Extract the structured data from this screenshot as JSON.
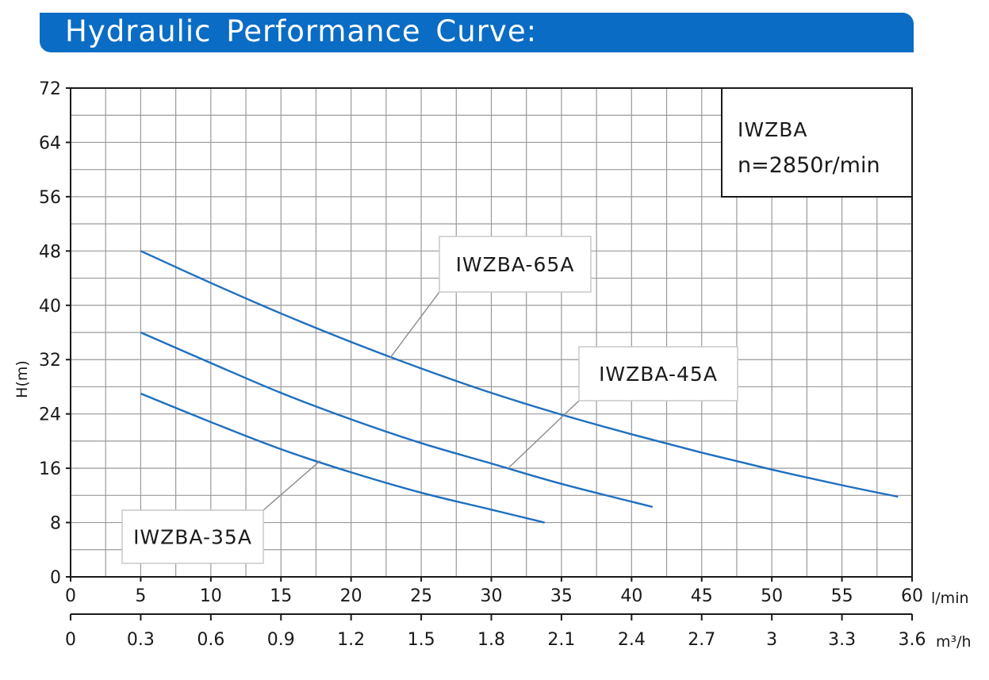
{
  "header": {
    "title": "Hydraulic Performance Curve:"
  },
  "model_box": {
    "model": "IWZBA",
    "speed": "n=2850r/min"
  },
  "chart_data": {
    "type": "line",
    "title": "",
    "ylabel": "H(m)",
    "xlabel": "l/min",
    "x2label": "m³/h",
    "xlim": [
      0,
      60
    ],
    "ylim": [
      0,
      72
    ],
    "grid": true,
    "x_major_ticks": [
      "0",
      "5",
      "10",
      "15",
      "20",
      "25",
      "30",
      "35",
      "40",
      "45",
      "50",
      "55",
      "60"
    ],
    "x2_ticks": [
      "0",
      "0.3",
      "0.6",
      "0.9",
      "1.2",
      "1.5",
      "1.8",
      "2.1",
      "2.4",
      "2.7",
      "3",
      "3.3",
      "3.6"
    ],
    "y_ticks": [
      "0",
      "8",
      "16",
      "24",
      "32",
      "40",
      "48",
      "56",
      "64",
      "72"
    ],
    "series": [
      {
        "name": "IWZBA-65A",
        "color": "#1f6fbf",
        "x": [
          5,
          10,
          15,
          20,
          25,
          30,
          35,
          40,
          45,
          50,
          55,
          59
        ],
        "y": [
          48,
          43.3,
          38.8,
          34.6,
          30.7,
          27.1,
          23.9,
          21,
          18.3,
          15.8,
          13.5,
          11.8
        ]
      },
      {
        "name": "IWZBA-45A",
        "color": "#1f6fbf",
        "x": [
          5,
          10,
          15,
          20,
          25,
          30,
          35,
          41.5
        ],
        "y": [
          36,
          31.5,
          27.1,
          23.2,
          19.7,
          16.7,
          13.7,
          10.3
        ]
      },
      {
        "name": "IWZBA-35A",
        "color": "#1f6fbf",
        "x": [
          5,
          10,
          15,
          20,
          25,
          30,
          33.8
        ],
        "y": [
          27,
          22.8,
          18.8,
          15.4,
          12.4,
          9.9,
          8
        ]
      }
    ],
    "annotations": [
      {
        "text": "IWZBA-65A",
        "target": [
          22.8,
          32.3
        ]
      },
      {
        "text": "IWZBA-45A",
        "target": [
          31.2,
          16
        ]
      },
      {
        "text": "IWZBA-35A",
        "target": [
          17.8,
          17.1
        ]
      }
    ]
  }
}
